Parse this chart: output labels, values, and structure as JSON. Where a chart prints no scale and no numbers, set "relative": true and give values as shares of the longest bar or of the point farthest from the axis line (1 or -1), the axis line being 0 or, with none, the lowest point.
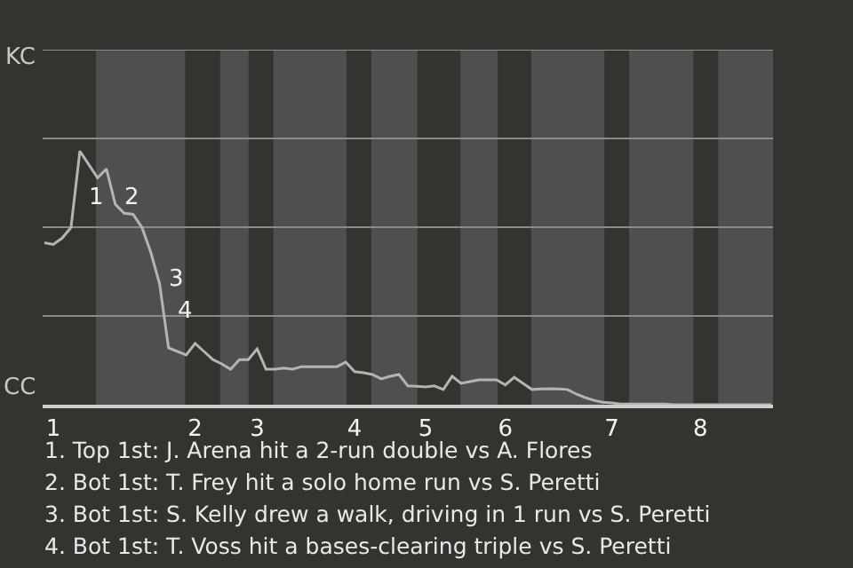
{
  "chart_data": {
    "type": "line",
    "relative": true,
    "categories": [
      null,
      "1",
      null,
      null,
      null,
      null,
      null,
      null,
      null,
      null,
      null,
      null,
      null,
      null,
      null,
      null,
      null,
      "2",
      null,
      null,
      null,
      null,
      null,
      null,
      "3",
      null,
      null,
      null,
      null,
      null,
      null,
      null,
      null,
      null,
      null,
      "4",
      null,
      null,
      null,
      null,
      null,
      null,
      null,
      "5",
      null,
      null,
      null,
      null,
      null,
      null,
      null,
      null,
      "6",
      null,
      null,
      null,
      null,
      null,
      null,
      null,
      null,
      null,
      null,
      null,
      "7",
      null,
      null,
      null,
      null,
      null,
      null,
      null,
      null,
      null,
      "8",
      null,
      null,
      null,
      null,
      null,
      null,
      null,
      null
    ],
    "series": [
      {
        "color": "#b4b4b4",
        "values": [
          0.639,
          0.632,
          0.657,
          0.699,
          1,
          0.947,
          0.895,
          0.93,
          0.79,
          0.755,
          0.751,
          0.699,
          0.601,
          0.476,
          0.224,
          0.21,
          0.196,
          0.242,
          0.21,
          0.178,
          0.161,
          0.14,
          0.178,
          0.178,
          0.22,
          0.14,
          0.14,
          0.144,
          0.14,
          0.15,
          0.15,
          0.15,
          0.15,
          0.15,
          0.168,
          0.13,
          0.126,
          0.119,
          0.102,
          0.112,
          0.119,
          0.074,
          0.073,
          0.07,
          0.074,
          0.06,
          0.112,
          0.084,
          0.091,
          0.098,
          0.098,
          0.098,
          0.078,
          0.108,
          0.084,
          0.06,
          0.062,
          0.063,
          0.062,
          0.06,
          0.042,
          0.028,
          0.017,
          0.01,
          0.007,
          0.003,
          0.003,
          0.003,
          0.003,
          0.003,
          0.003,
          0,
          0,
          0,
          0,
          0,
          0,
          0,
          0,
          0,
          0,
          0,
          0
        ]
      }
    ],
    "marker": "none",
    "line_style": "solid",
    "ref_lines": [
      {
        "axis": "y",
        "value": 0.35,
        "color": "#8a8a8a"
      },
      {
        "axis": "y",
        "value": 0.7,
        "color": "#8a8a8a"
      },
      {
        "axis": "y",
        "value": 1.05,
        "color": "#8a8a8a"
      },
      {
        "axis": "y",
        "value": 1.4,
        "color": "#8a8a8a"
      }
    ],
    "annotations": [
      "KC",
      "CC",
      "1",
      "2",
      "3",
      "4",
      "1. Top 1st: J. Arena hit a 2-run double vs A. Flores",
      "2. Bot 1st: T. Frey hit a solo home run vs S. Peretti",
      "3. Bot 1st: S. Kelly drew a walk, driving in 1 run vs S. Peretti",
      "4. Bot 1st: T. Voss hit a bases-clearing triple vs S. Peretti"
    ]
  }
}
